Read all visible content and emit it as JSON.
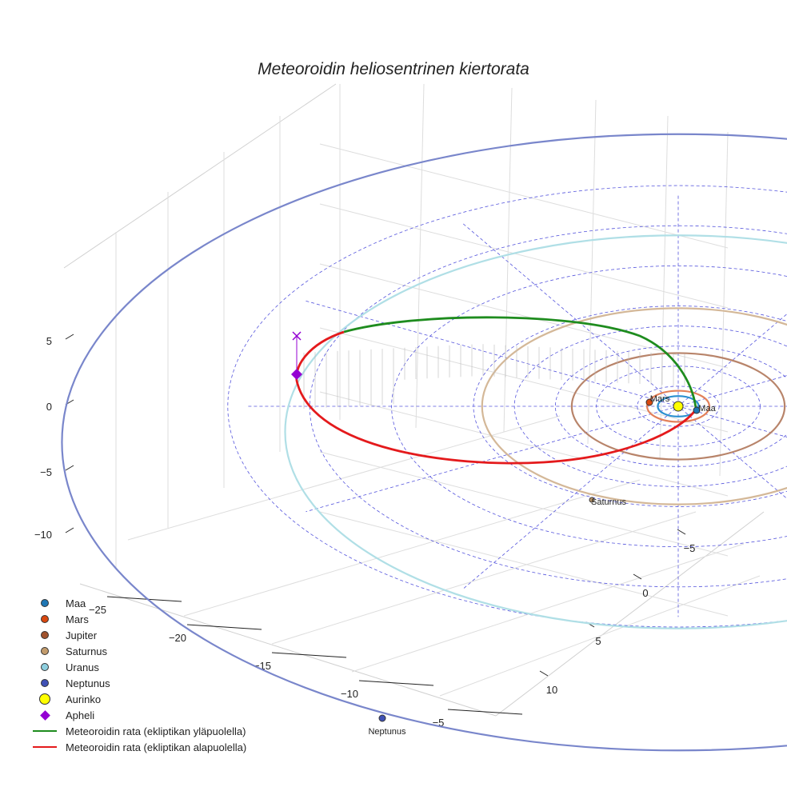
{
  "chart_data": {
    "type": "scatter",
    "title": "Meteoroidin heliosentrinen kiertorata",
    "x_ticks": [
      "−25",
      "−20",
      "−15",
      "−10",
      "−5"
    ],
    "y_ticks": [
      "−5",
      "0",
      "5",
      "10"
    ],
    "z_ticks": [
      "5",
      "0",
      "−5",
      "−10"
    ],
    "planets": [
      {
        "name": "Maa",
        "a_au": 1.0,
        "color": "#1f77b4",
        "orbit_color": "#2a8fd0"
      },
      {
        "name": "Mars",
        "a_au": 1.52,
        "color": "#d9480f",
        "orbit_color": "#e3805a"
      },
      {
        "name": "Jupiter",
        "a_au": 5.2,
        "color": "#a0522d",
        "orbit_color": "#b8846a"
      },
      {
        "name": "Saturnus",
        "a_au": 9.58,
        "color": "#c29b6c",
        "orbit_color": "#d4b898"
      },
      {
        "name": "Uranus",
        "a_au": 19.2,
        "color": "#8ecfdf",
        "orbit_color": "#b0dfe6"
      },
      {
        "name": "Neptunus",
        "a_au": 30.1,
        "color": "#3f51b5",
        "orbit_color": "#7986cb"
      }
    ],
    "labels": {
      "maa": "Maa",
      "mars": "Mars",
      "saturnus": "Saturnus",
      "neptunus": "Neptunus"
    },
    "legend": [
      {
        "label": "Maa",
        "kind": "dot",
        "color": "#1f77b4"
      },
      {
        "label": "Mars",
        "kind": "dot",
        "color": "#d9480f"
      },
      {
        "label": "Jupiter",
        "kind": "dot",
        "color": "#a0522d"
      },
      {
        "label": "Saturnus",
        "kind": "dot",
        "color": "#c29b6c"
      },
      {
        "label": "Uranus",
        "kind": "dot",
        "color": "#8ecfdf"
      },
      {
        "label": "Neptunus",
        "kind": "dot",
        "color": "#3f51b5"
      },
      {
        "label": "Aurinko",
        "kind": "sun",
        "color": "#ffff00"
      },
      {
        "label": "Apheli",
        "kind": "diamond",
        "color": "#9400d3"
      },
      {
        "label": "Meteoroidin rata (ekliptikan yläpuolella)",
        "kind": "line",
        "color": "#1e8c1e"
      },
      {
        "label": "Meteoroidin rata (ekliptikan alapuolella)",
        "kind": "line",
        "color": "#e41a1c"
      }
    ],
    "legend_position": "bottom-left"
  }
}
